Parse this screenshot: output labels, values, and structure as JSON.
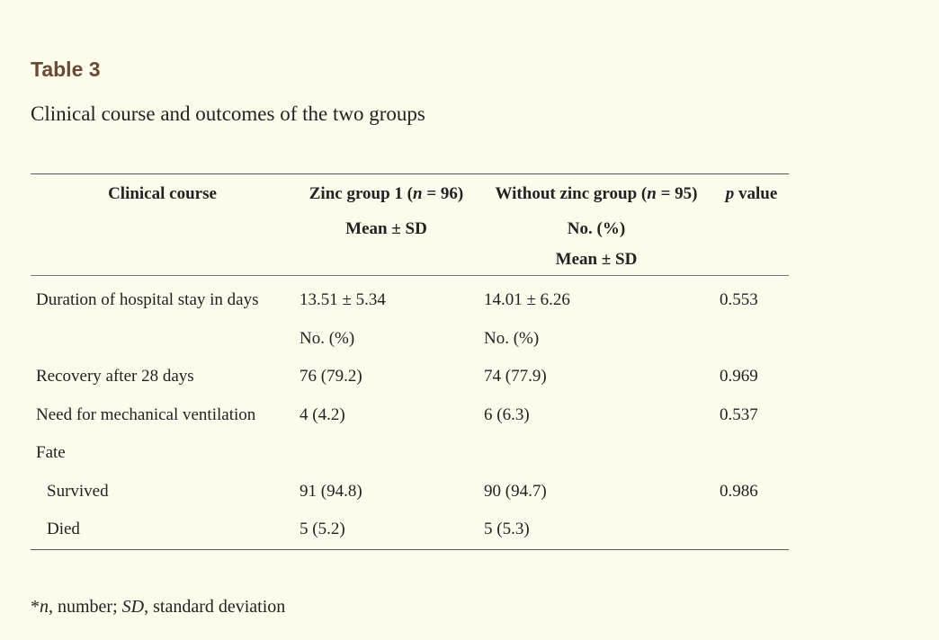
{
  "table_label": "Table 3",
  "caption": "Clinical course and outcomes of the two groups",
  "header": {
    "col1": "Clinical course",
    "col2_prefix": "Zinc group 1 (",
    "col2_n": "n",
    "col2_suffix": " = 96)",
    "col3_prefix": "Without zinc group (",
    "col3_n": "n",
    "col3_suffix": " = 95)",
    "col4_p": "p",
    "col4_suffix": " value",
    "row2_col2": "Mean ± SD",
    "row2_col3": "No. (%)",
    "row3_col3": "Mean ± SD"
  },
  "rows": [
    {
      "label": "Duration of hospital stay in days",
      "zinc": "13.51 ± 5.34",
      "without": "14.01 ± 6.26",
      "p": "0.553"
    },
    {
      "label": "",
      "zinc": "No. (%)",
      "without": "No. (%)",
      "p": ""
    },
    {
      "label": "Recovery after 28 days",
      "zinc": "76 (79.2)",
      "without": "74 (77.9)",
      "p": "0.969"
    },
    {
      "label": "Need for mechanical ventilation",
      "zinc": "4 (4.2)",
      "without": "6 (6.3)",
      "p": "0.537"
    },
    {
      "label": "Fate",
      "zinc": "",
      "without": "",
      "p": ""
    },
    {
      "label": "Survived",
      "zinc": "91 (94.8)",
      "without": "90 (94.7)",
      "p": "0.986"
    },
    {
      "label": "Died",
      "zinc": "5 (5.2)",
      "without": "5 (5.3)",
      "p": ""
    }
  ],
  "footnote": {
    "prefix": "*",
    "n": "n",
    "mid": ", number; ",
    "sd": "SD",
    "suffix": ", standard deviation"
  }
}
